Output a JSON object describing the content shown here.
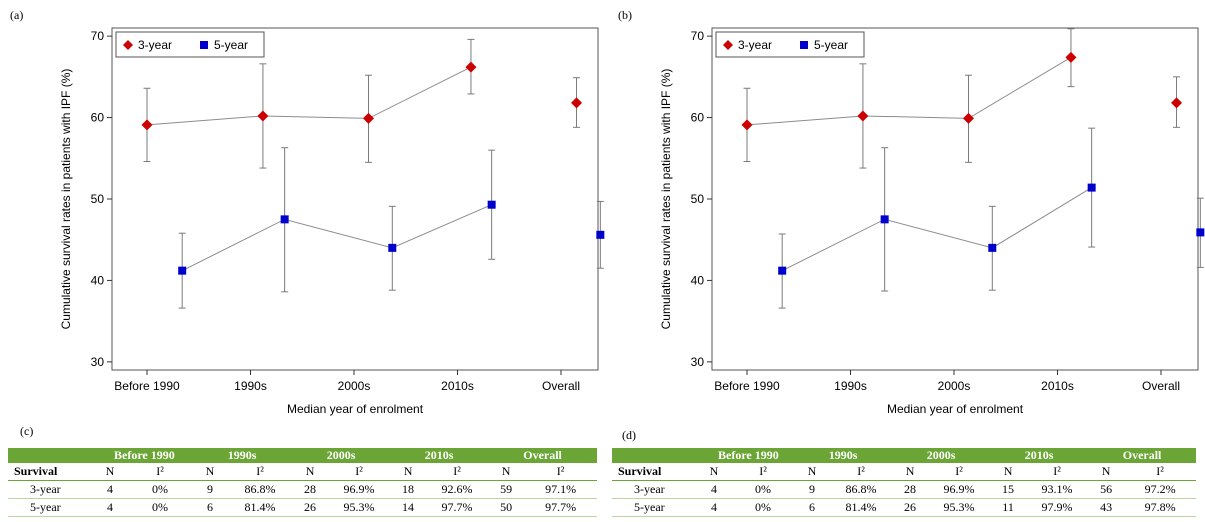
{
  "chart_data": [
    {
      "type": "scatter",
      "panel": "(a)",
      "categories": [
        "Before 1990",
        "1990s",
        "2000s",
        "2010s",
        "Overall"
      ],
      "xlabel": "Median year of enrolment",
      "ylabel": "Cumulative survival rates in patients with IPF (%)",
      "ylim": [
        29,
        71
      ],
      "yticks": [
        30,
        40,
        50,
        60,
        70
      ],
      "legend_position": "top-left",
      "series": [
        {
          "name": "3-year",
          "color": "#cc0000",
          "marker": "diamond",
          "points": [
            {
              "x": 0.0,
              "y": 59.1,
              "lo": 54.6,
              "hi": 63.6
            },
            {
              "x": 1.12,
              "y": 60.2,
              "lo": 53.8,
              "hi": 66.6
            },
            {
              "x": 2.14,
              "y": 59.9,
              "lo": 54.5,
              "hi": 65.2
            },
            {
              "x": 3.13,
              "y": 66.2,
              "lo": 62.9,
              "hi": 69.6
            },
            {
              "x": 4.15,
              "y": 61.8,
              "lo": 58.8,
              "hi": 64.9
            }
          ]
        },
        {
          "name": "5-year",
          "color": "#0000cc",
          "marker": "square",
          "points": [
            {
              "x": 0.34,
              "y": 41.2,
              "lo": 36.6,
              "hi": 45.8
            },
            {
              "x": 1.33,
              "y": 47.5,
              "lo": 38.6,
              "hi": 56.3
            },
            {
              "x": 2.37,
              "y": 44.0,
              "lo": 38.8,
              "hi": 49.1
            },
            {
              "x": 3.33,
              "y": 49.3,
              "lo": 42.6,
              "hi": 56.0
            },
            {
              "x": 4.38,
              "y": 45.6,
              "lo": 41.5,
              "hi": 49.7
            }
          ]
        }
      ]
    },
    {
      "type": "scatter",
      "panel": "(b)",
      "categories": [
        "Before 1990",
        "1990s",
        "2000s",
        "2010s",
        "Overall"
      ],
      "xlabel": "Median year of enrolment",
      "ylabel": "Cumulative survival rates in patients with IPF (%)",
      "ylim": [
        29,
        71
      ],
      "yticks": [
        30,
        40,
        50,
        60,
        70
      ],
      "legend_position": "top-left",
      "series": [
        {
          "name": "3-year",
          "color": "#cc0000",
          "marker": "diamond",
          "points": [
            {
              "x": 0.0,
              "y": 59.1,
              "lo": 54.6,
              "hi": 63.6
            },
            {
              "x": 1.12,
              "y": 60.2,
              "lo": 53.8,
              "hi": 66.6
            },
            {
              "x": 2.14,
              "y": 59.9,
              "lo": 54.5,
              "hi": 65.2
            },
            {
              "x": 3.13,
              "y": 67.4,
              "lo": 63.8,
              "hi": 70.9
            },
            {
              "x": 4.15,
              "y": 61.8,
              "lo": 58.8,
              "hi": 65.0
            }
          ]
        },
        {
          "name": "5-year",
          "color": "#0000cc",
          "marker": "square",
          "points": [
            {
              "x": 0.34,
              "y": 41.2,
              "lo": 36.6,
              "hi": 45.7
            },
            {
              "x": 1.33,
              "y": 47.5,
              "lo": 38.7,
              "hi": 56.3
            },
            {
              "x": 2.37,
              "y": 44.0,
              "lo": 38.8,
              "hi": 49.1
            },
            {
              "x": 3.33,
              "y": 51.4,
              "lo": 44.1,
              "hi": 58.7
            },
            {
              "x": 4.38,
              "y": 45.9,
              "lo": 41.6,
              "hi": 50.1
            }
          ]
        }
      ]
    },
    {
      "type": "table",
      "panel": "(c)",
      "groups": [
        "Before 1990",
        "1990s",
        "2000s",
        "2010s",
        "Overall"
      ],
      "row_header": "Survival",
      "subheaders": [
        "N",
        "I²"
      ],
      "rows": [
        {
          "label": "3-year",
          "cells": [
            "4",
            "0%",
            "9",
            "86.8%",
            "28",
            "96.9%",
            "18",
            "92.6%",
            "59",
            "97.1%"
          ]
        },
        {
          "label": "5-year",
          "cells": [
            "4",
            "0%",
            "6",
            "81.4%",
            "26",
            "95.3%",
            "14",
            "97.7%",
            "50",
            "97.7%"
          ]
        }
      ]
    },
    {
      "type": "table",
      "panel": "(d)",
      "groups": [
        "Before 1990",
        "1990s",
        "2000s",
        "2010s",
        "Overall"
      ],
      "row_header": "Survival",
      "subheaders": [
        "N",
        "I²"
      ],
      "rows": [
        {
          "label": "3-year",
          "cells": [
            "4",
            "0%",
            "9",
            "86.8%",
            "28",
            "96.9%",
            "15",
            "93.1%",
            "56",
            "97.2%"
          ]
        },
        {
          "label": "5-year",
          "cells": [
            "4",
            "0%",
            "6",
            "81.4%",
            "26",
            "95.3%",
            "11",
            "97.9%",
            "43",
            "97.8%"
          ]
        }
      ]
    }
  ]
}
